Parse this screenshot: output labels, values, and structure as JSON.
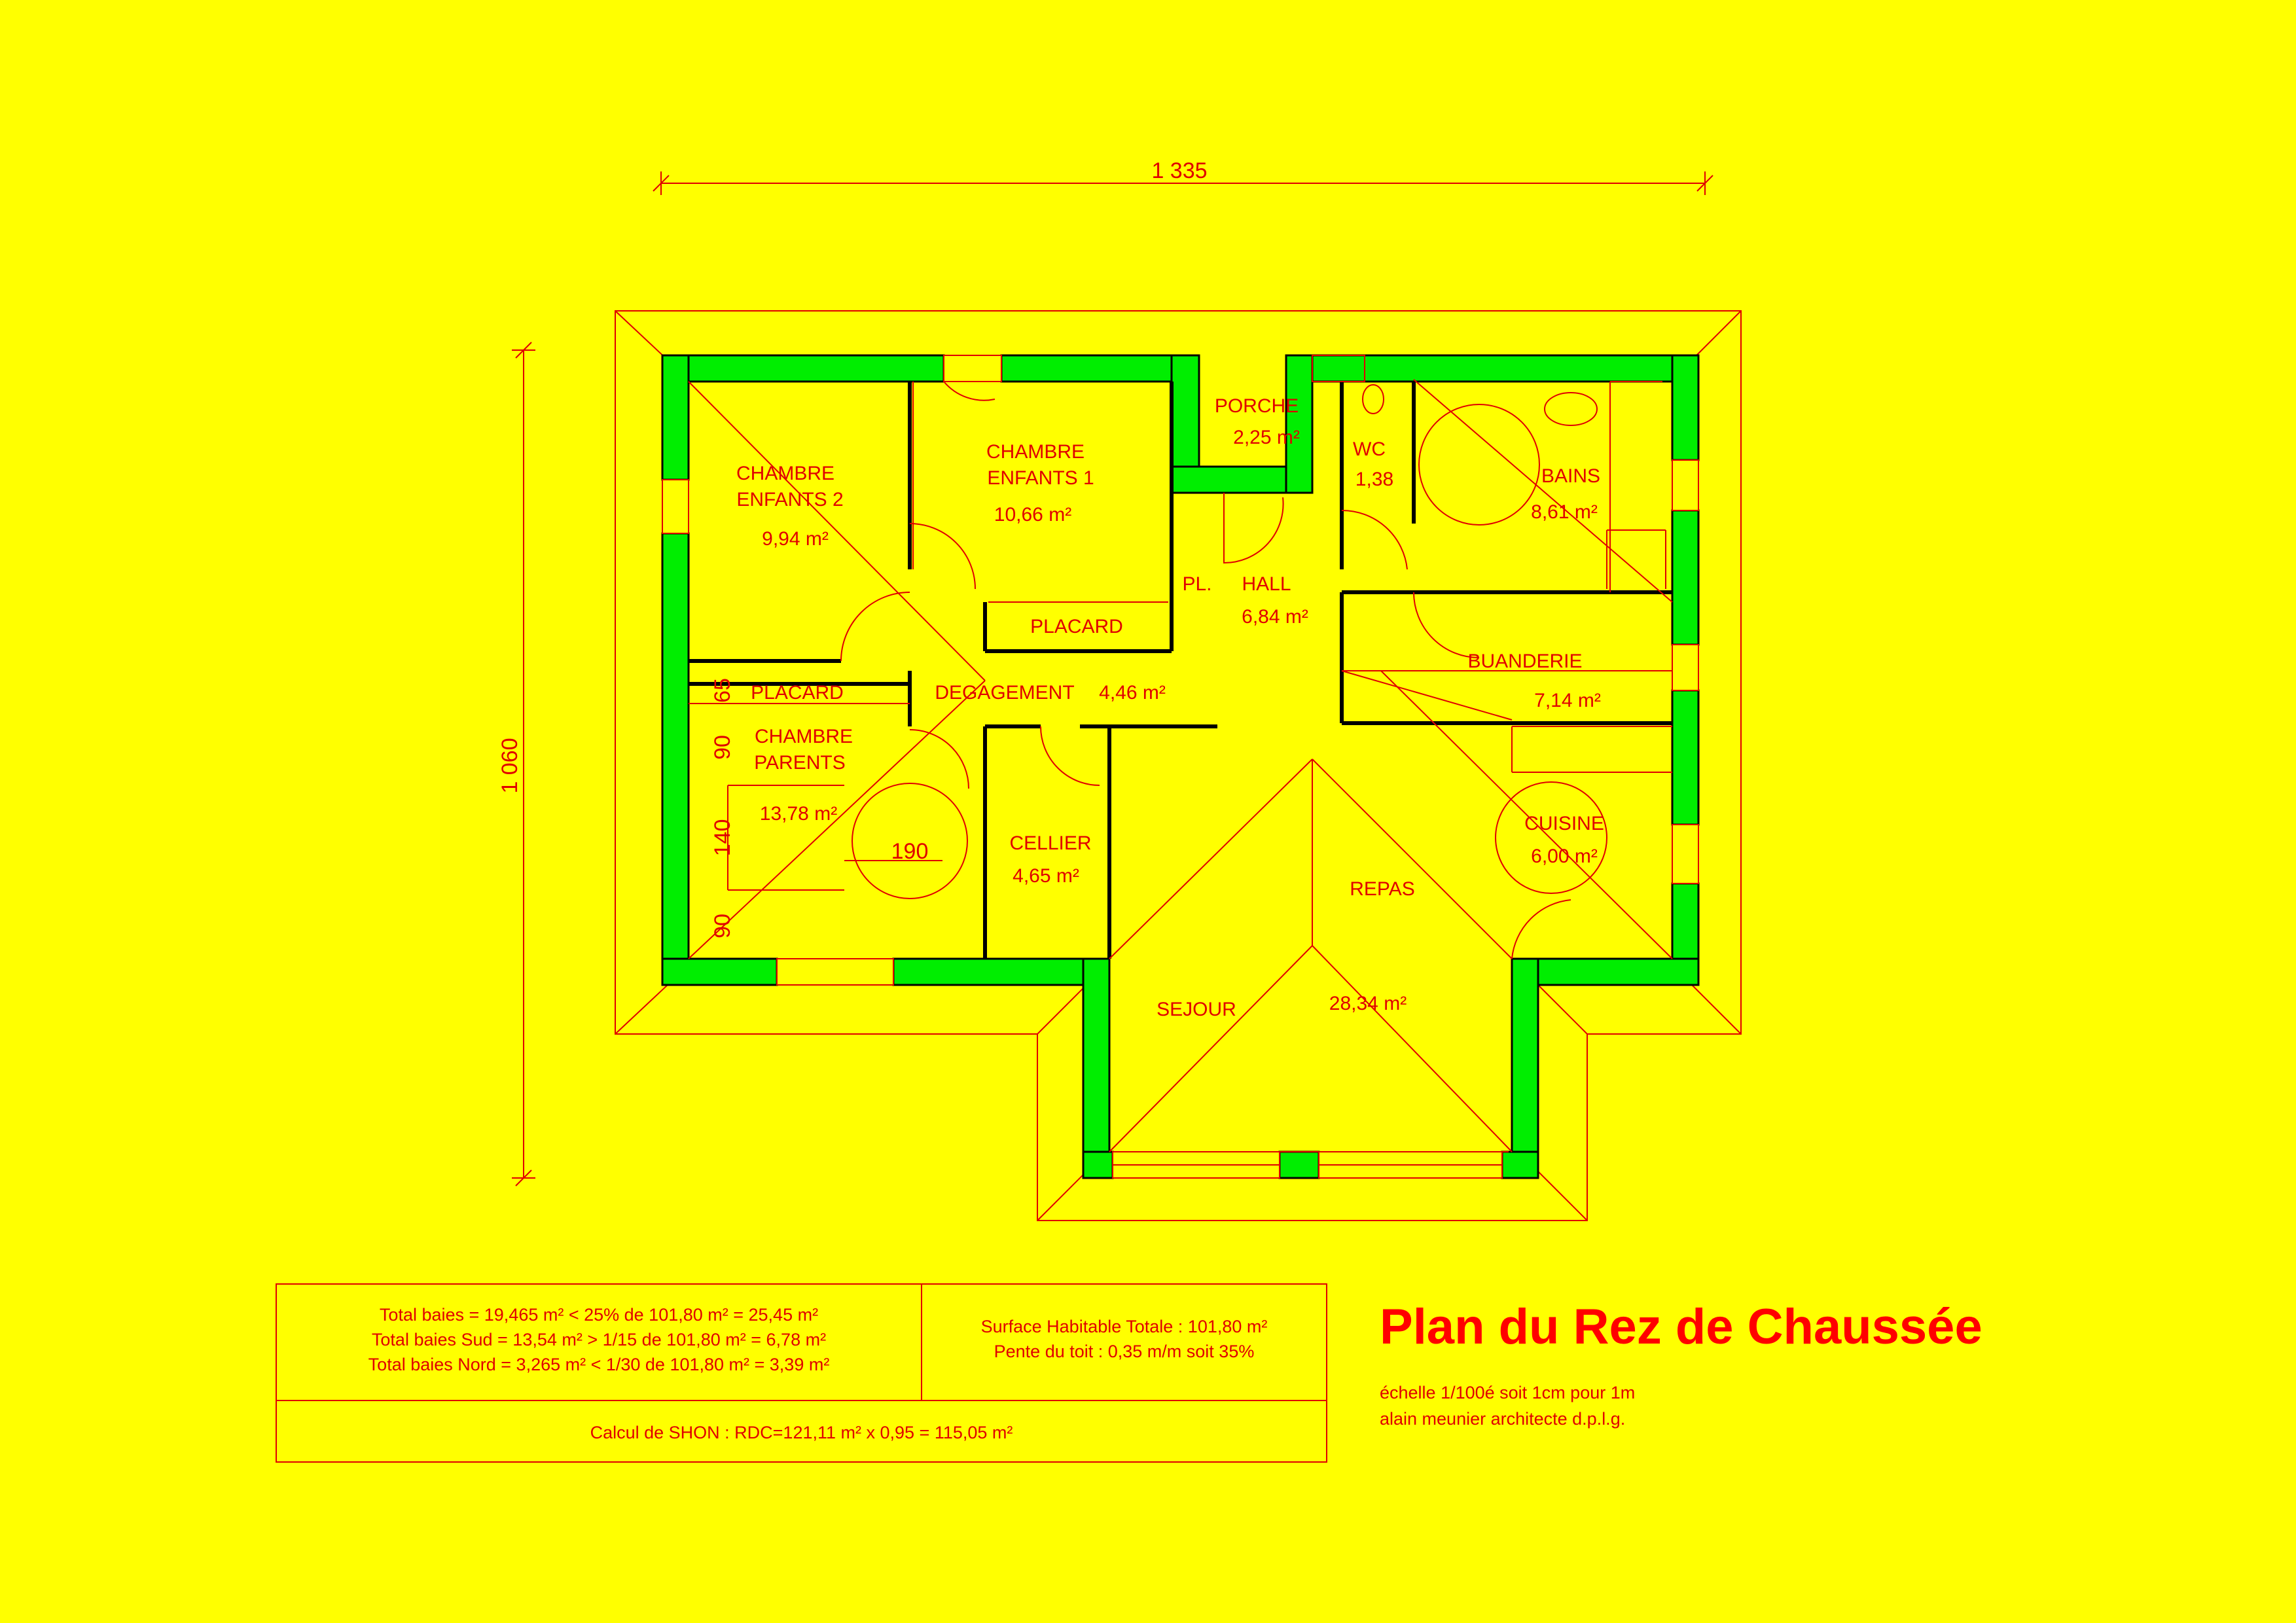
{
  "dimensions": {
    "width_label": "1 335",
    "height_label": "1 060",
    "side_dims": [
      "65",
      "90",
      "140",
      "90"
    ],
    "bed_width": "190"
  },
  "rooms": {
    "chambre2": {
      "name_line1": "CHAMBRE",
      "name_line2": "ENFANTS 2",
      "area": "9,94 m²"
    },
    "chambre1": {
      "name_line1": "CHAMBRE",
      "name_line2": "ENFANTS 1",
      "area": "10,66 m²"
    },
    "porche": {
      "name": "PORCHE",
      "area": "2,25 m²"
    },
    "wc": {
      "name": "WC",
      "area": "1,38"
    },
    "bains": {
      "name": "BAINS",
      "area": "8,61 m²"
    },
    "pl": {
      "name": "PL."
    },
    "hall": {
      "name": "HALL",
      "area": "6,84 m²"
    },
    "placard_ch1": {
      "name": "PLACARD"
    },
    "placard_parents": {
      "name": "PLACARD"
    },
    "degagement": {
      "name": "DEGAGEMENT",
      "area": "4,46 m²"
    },
    "buanderie": {
      "name": "BUANDERIE",
      "area": "7,14 m²"
    },
    "parents": {
      "name_line1": "CHAMBRE",
      "name_line2": "PARENTS",
      "area": "13,78 m²"
    },
    "cellier": {
      "name": "CELLIER",
      "area": "4,65 m²"
    },
    "cuisine": {
      "name": "CUISINE",
      "area": "6,00 m²"
    },
    "repas": {
      "name": "REPAS"
    },
    "sejour": {
      "name": "SEJOUR",
      "area": "28,34 m²"
    }
  },
  "legend": {
    "baies_line1": "Total baies = 19,465 m² < 25% de 101,80 m² = 25,45 m²",
    "baies_line2": "Total baies Sud = 13,54 m² > 1/15 de 101,80 m² = 6,78 m²",
    "baies_line3": "Total baies Nord = 3,265 m² < 1/30 de 101,80 m² = 3,39 m²",
    "surface_line1": "Surface Habitable Totale : 101,80 m²",
    "surface_line2": "Pente du toit : 0,35 m/m soit 35%",
    "shon": "Calcul de SHON : RDC=121,11 m² x 0,95 = 115,05 m²"
  },
  "title": {
    "main": "Plan du Rez de Chaussée",
    "scale": "échelle 1/100é soit 1cm pour 1m",
    "architect": "alain meunier architecte d.p.l.g."
  },
  "colors": {
    "background": "#ffff00",
    "wall_fill": "#00ee00",
    "line": "#e00000",
    "wall_edge": "#000000"
  }
}
